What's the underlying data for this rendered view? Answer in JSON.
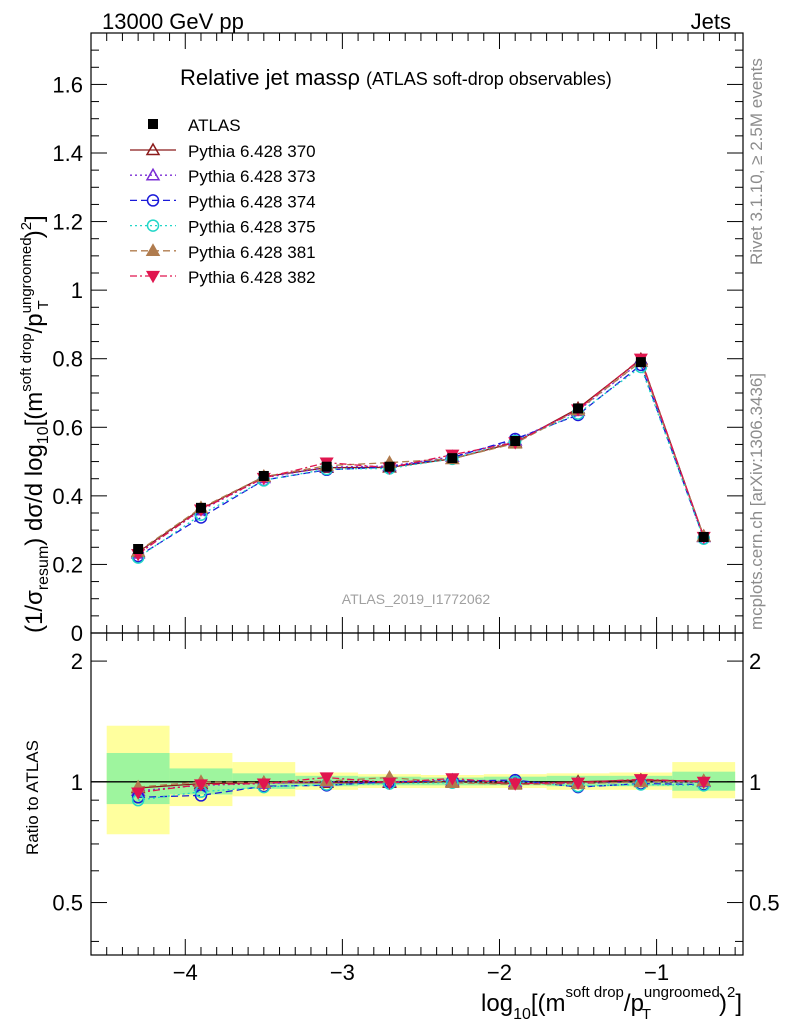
{
  "header": {
    "left": "13000 GeV pp",
    "right": "Jets"
  },
  "side_notes": {
    "rivet": "Rivet 3.1.10, ≥ 2.5M events",
    "mcplots": "mcplots.cern.ch [arXiv:1306.3436]"
  },
  "watermark": "ATLAS_2019_I1772062",
  "colors": {
    "data": "#000000",
    "band_stat": "#9ef59e",
    "band_total": "#ffff9e"
  },
  "chart_data": [
    {
      "type": "line",
      "panel": "main",
      "title": "Relative jet massρ",
      "subtitle": "(ATLAS soft-drop observables)",
      "ylabel_parts": {
        "pre": "(1/σ",
        "sub1": "resum",
        "mid": ") dσ/d log",
        "sub2": "10",
        "post1": "[(m",
        "sup1": "soft drop",
        "post2": "/p",
        "sup2": "ungroomed",
        "sub3": "T",
        "post3": ")",
        "sup3": "2",
        "post4": "]"
      },
      "x": [
        -4.3,
        -3.9,
        -3.5,
        -3.1,
        -2.7,
        -2.3,
        -1.9,
        -1.5,
        -1.1,
        -0.7
      ],
      "xlim": [
        -4.6,
        -0.45
      ],
      "ylim": [
        0,
        1.75
      ],
      "yticks": [
        0,
        0.2,
        0.4,
        0.6,
        0.8,
        1,
        1.2,
        1.4,
        1.6
      ],
      "yticklabels": [
        "0",
        "0.2",
        "0.4",
        "0.6",
        "0.8",
        "1",
        "1.2",
        "1.4",
        "1.6"
      ],
      "data": {
        "name": "ATLAS",
        "values": [
          0.245,
          0.365,
          0.458,
          0.485,
          0.485,
          0.51,
          0.56,
          0.655,
          0.79,
          0.28
        ]
      },
      "series": [
        {
          "name": "Pythia 6.428 370",
          "color": "#8b1a1a",
          "marker": "triangle-up-open",
          "dash": "",
          "values": [
            0.236,
            0.362,
            0.456,
            0.482,
            0.483,
            0.508,
            0.556,
            0.655,
            0.798,
            0.282
          ]
        },
        {
          "name": "Pythia 6.428 373",
          "color": "#7b2fd4",
          "marker": "triangle-up-open",
          "dash": "2,3",
          "values": [
            0.232,
            0.358,
            0.452,
            0.484,
            0.487,
            0.514,
            0.562,
            0.648,
            0.792,
            0.28
          ]
        },
        {
          "name": "Pythia 6.428 374",
          "color": "#1a1ad9",
          "marker": "circle-open",
          "dash": "7,4",
          "values": [
            0.224,
            0.337,
            0.446,
            0.476,
            0.484,
            0.512,
            0.566,
            0.636,
            0.782,
            0.276
          ]
        },
        {
          "name": "Pythia 6.428 375",
          "color": "#22d6c8",
          "marker": "circle-open",
          "dash": "2,3",
          "values": [
            0.22,
            0.345,
            0.445,
            0.478,
            0.48,
            0.508,
            0.56,
            0.64,
            0.776,
            0.275
          ]
        },
        {
          "name": "Pythia 6.428 381",
          "color": "#b07c4e",
          "marker": "triangle-up-filled",
          "dash": "7,4",
          "values": [
            0.238,
            0.365,
            0.456,
            0.488,
            0.497,
            0.508,
            0.553,
            0.65,
            0.792,
            0.282
          ]
        },
        {
          "name": "Pythia 6.428 382",
          "color": "#e0164f",
          "marker": "triangle-down-filled",
          "dash": "7,3,2,3",
          "values": [
            0.23,
            0.36,
            0.452,
            0.497,
            0.482,
            0.52,
            0.556,
            0.652,
            0.8,
            0.28
          ]
        }
      ]
    },
    {
      "type": "line",
      "panel": "ratio",
      "ylabel": "Ratio to ATLAS",
      "xlabel_parts": {
        "pre": "log",
        "sub1": "10",
        "mid": "[(m",
        "sup1": "soft drop",
        "mid2": "/p",
        "sup2": "ungroomed",
        "sub2": "T",
        "post": ")",
        "sup3": "2",
        "end": "]"
      },
      "xticks": [
        -4,
        -3,
        -2,
        -1
      ],
      "xticklabels": [
        "−4",
        "−3",
        "−2",
        "−1"
      ],
      "ylim": [
        0.37,
        2.35
      ],
      "log_scale_y": true,
      "yticks": [
        0.5,
        1,
        2
      ],
      "yticklabels": [
        "0.5",
        "1",
        "2"
      ],
      "bins": [
        {
          "lo": -4.5,
          "hi": -4.1,
          "stat": [
            0.88,
            1.18
          ],
          "total": [
            0.74,
            1.38
          ]
        },
        {
          "lo": -4.1,
          "hi": -3.7,
          "stat": [
            0.93,
            1.08
          ],
          "total": [
            0.87,
            1.18
          ]
        },
        {
          "lo": -3.7,
          "hi": -3.3,
          "stat": [
            0.96,
            1.05
          ],
          "total": [
            0.92,
            1.12
          ]
        },
        {
          "lo": -3.3,
          "hi": -2.9,
          "stat": [
            0.975,
            1.035
          ],
          "total": [
            0.955,
            1.055
          ]
        },
        {
          "lo": -2.9,
          "hi": -2.5,
          "stat": [
            0.98,
            1.03
          ],
          "total": [
            0.965,
            1.045
          ]
        },
        {
          "lo": -2.5,
          "hi": -2.1,
          "stat": [
            0.98,
            1.025
          ],
          "total": [
            0.965,
            1.04
          ]
        },
        {
          "lo": -2.1,
          "hi": -1.7,
          "stat": [
            0.98,
            1.03
          ],
          "total": [
            0.965,
            1.045
          ]
        },
        {
          "lo": -1.7,
          "hi": -1.3,
          "stat": [
            0.975,
            1.035
          ],
          "total": [
            0.955,
            1.05
          ]
        },
        {
          "lo": -1.3,
          "hi": -0.9,
          "stat": [
            0.975,
            1.035
          ],
          "total": [
            0.955,
            1.055
          ]
        },
        {
          "lo": -0.9,
          "hi": -0.5,
          "stat": [
            0.95,
            1.06
          ],
          "total": [
            0.91,
            1.12
          ]
        }
      ],
      "series": [
        {
          "name": "Pythia 6.428 370",
          "values": [
            0.965,
            0.99,
            0.995,
            0.995,
            0.995,
            1.0,
            0.99,
            1.0,
            1.01,
            1.005
          ]
        },
        {
          "name": "Pythia 6.428 373",
          "values": [
            0.95,
            0.98,
            0.99,
            1.0,
            1.0,
            1.01,
            1.0,
            0.99,
            1.0,
            1.0
          ]
        },
        {
          "name": "Pythia 6.428 374",
          "values": [
            0.915,
            0.925,
            0.975,
            0.98,
            1.0,
            1.005,
            1.01,
            0.97,
            0.99,
            0.985
          ]
        },
        {
          "name": "Pythia 6.428 375",
          "values": [
            0.9,
            0.945,
            0.97,
            0.985,
            0.99,
            0.995,
            1.0,
            0.975,
            0.985,
            0.98
          ]
        },
        {
          "name": "Pythia 6.428 381",
          "values": [
            0.97,
            1.0,
            0.995,
            1.005,
            1.025,
            0.995,
            0.985,
            0.99,
            1.0,
            1.005
          ]
        },
        {
          "name": "Pythia 6.428 382",
          "values": [
            0.94,
            0.985,
            0.99,
            1.025,
            0.995,
            1.02,
            0.99,
            0.995,
            1.015,
            1.0
          ]
        }
      ]
    }
  ]
}
